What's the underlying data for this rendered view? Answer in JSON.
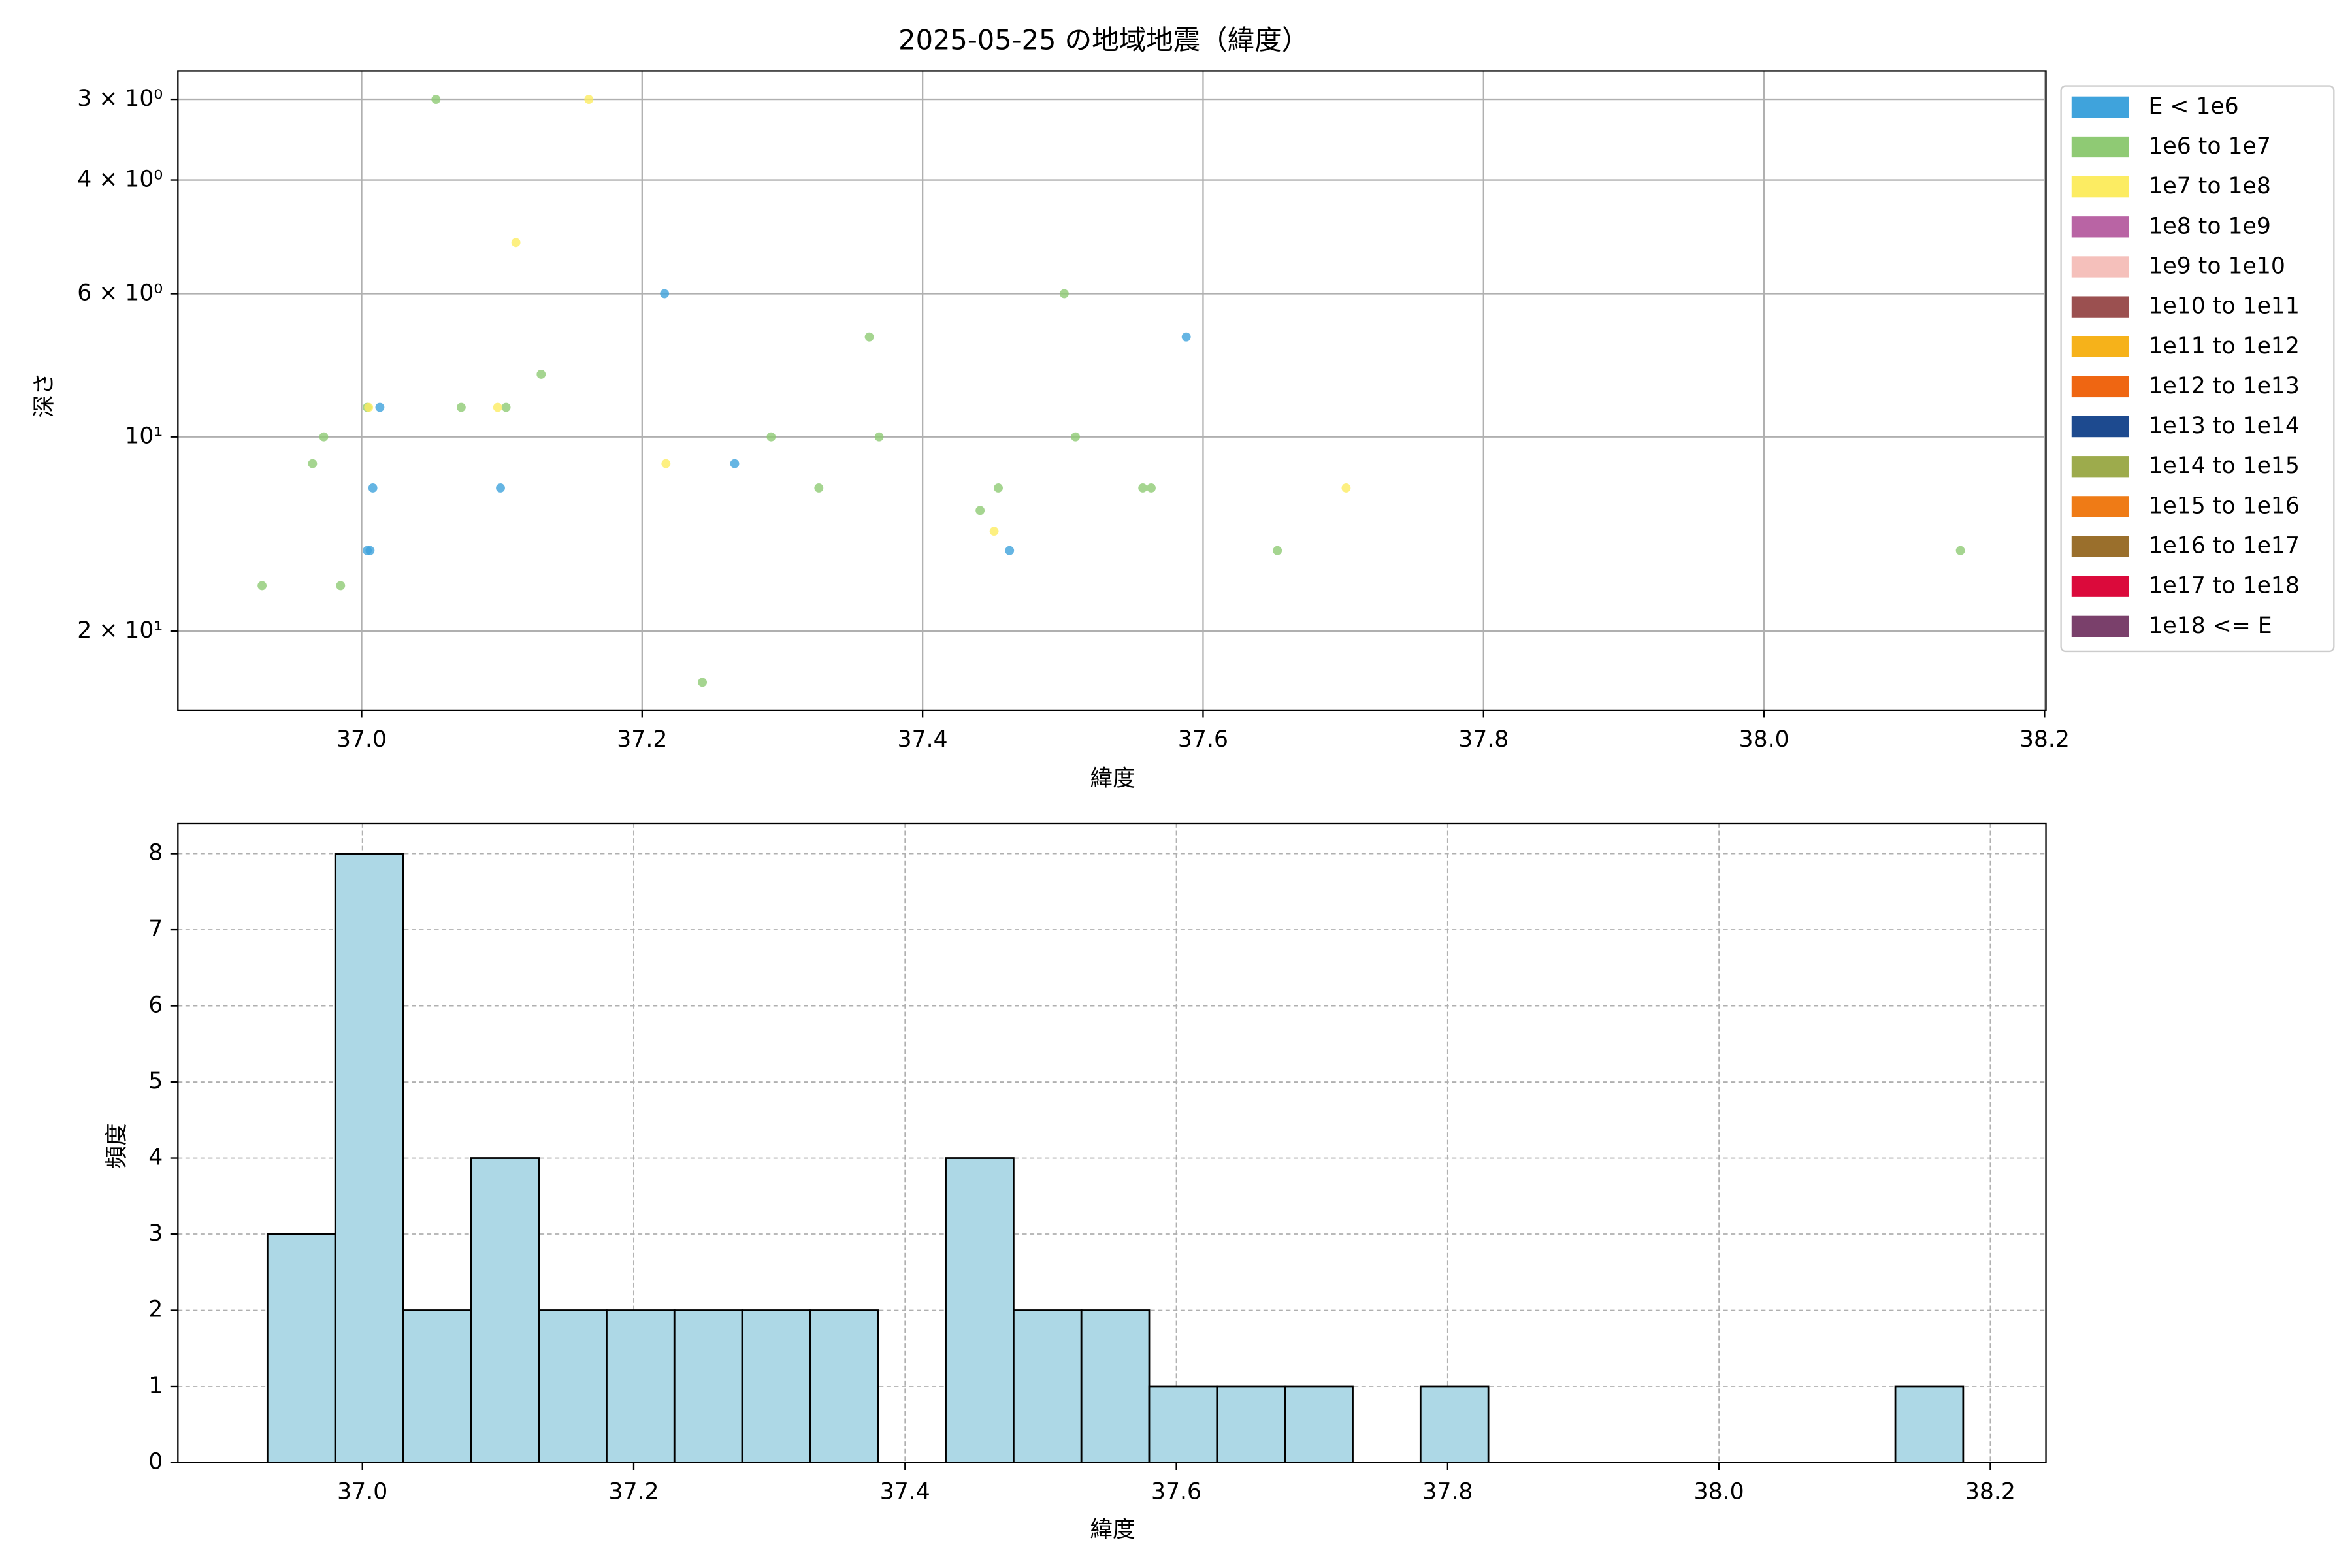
{
  "chart_data": [
    {
      "type": "scatter",
      "title": "2025-05-25 の地域地震（緯度）",
      "xlabel": "緯度",
      "ylabel": "深さ",
      "xlim": [
        36.869,
        38.201
      ],
      "ylim": [
        26.5,
        2.71
      ],
      "yscale": "log",
      "grid": true,
      "legend": "outside right",
      "xticks": [
        {
          "value": 37.0,
          "label": "37.0"
        },
        {
          "value": 37.2,
          "label": "37.2"
        },
        {
          "value": 37.4,
          "label": "37.4"
        },
        {
          "value": 37.6,
          "label": "37.6"
        },
        {
          "value": 37.8,
          "label": "37.8"
        },
        {
          "value": 38.0,
          "label": "38.0"
        },
        {
          "value": 38.2,
          "label": "38.2"
        }
      ],
      "yticks": [
        {
          "value": 3,
          "label": "3 × 10⁰"
        },
        {
          "value": 4,
          "label": "4 × 10⁰"
        },
        {
          "value": 6,
          "label": "6 × 10⁰"
        },
        {
          "value": 10,
          "label": "10¹"
        },
        {
          "value": 20,
          "label": "2 × 10¹"
        }
      ],
      "series": [
        {
          "name": "E < 1e6",
          "color": "#3fa3dc",
          "x": [
            37.013,
            37.008,
            37.004,
            37.006,
            37.099,
            37.216,
            37.266,
            37.462,
            37.588
          ],
          "values": [
            9,
            12,
            15,
            15,
            12,
            6,
            11,
            15,
            7
          ]
        },
        {
          "name": "1e6 to 1e7",
          "color": "#8fca74",
          "x": [
            37.053,
            36.929,
            36.985,
            36.965,
            36.973,
            37.004,
            37.071,
            37.103,
            37.128,
            37.243,
            37.292,
            37.326,
            37.362,
            37.369,
            37.441,
            37.454,
            37.501,
            37.509,
            37.557,
            37.563,
            37.653,
            38.14
          ],
          "values": [
            3,
            17,
            17,
            11,
            10,
            9,
            9,
            9,
            8,
            24,
            10,
            12,
            7,
            10,
            13,
            12,
            6,
            10,
            12,
            12,
            15,
            15
          ]
        },
        {
          "name": "1e7 to 1e8",
          "color": "#fcec62",
          "x": [
            37.162,
            37.11,
            37.005,
            37.097,
            37.217,
            37.451,
            37.702
          ],
          "values": [
            3,
            5,
            9,
            9,
            11,
            14,
            12
          ]
        },
        {
          "name": "1e8 to 1e9",
          "color": "#b964a4",
          "x": [],
          "values": []
        },
        {
          "name": "1e9 to 1e10",
          "color": "#f5c0bb",
          "x": [],
          "values": []
        },
        {
          "name": "1e10 to 1e11",
          "color": "#9b5050",
          "x": [],
          "values": []
        },
        {
          "name": "1e11 to 1e12",
          "color": "#f6b21a",
          "x": [],
          "values": []
        },
        {
          "name": "1e12 to 1e13",
          "color": "#ef6612",
          "x": [],
          "values": []
        },
        {
          "name": "1e13 to 1e14",
          "color": "#1d4a8f",
          "x": [],
          "values": []
        },
        {
          "name": "1e14 to 1e15",
          "color": "#9dab4c",
          "x": [],
          "values": []
        },
        {
          "name": "1e15 to 1e16",
          "color": "#ef7b16",
          "x": [],
          "values": []
        },
        {
          "name": "1e16 to 1e17",
          "color": "#9a6f2c",
          "x": [],
          "values": []
        },
        {
          "name": "1e17 to 1e18",
          "color": "#db0a3b",
          "x": [],
          "values": []
        },
        {
          "name": "1e18 <= E",
          "color": "#7a406b",
          "x": [],
          "values": []
        }
      ]
    },
    {
      "type": "histogram",
      "xlabel": "緯度",
      "ylabel": "頻度",
      "color": "#add8e6",
      "edgecolor": "#000000",
      "xlim": [
        36.864,
        38.241
      ],
      "ylim": [
        0,
        8.4
      ],
      "grid": true,
      "xticks": [
        {
          "value": 37.0,
          "label": "37.0"
        },
        {
          "value": 37.2,
          "label": "37.2"
        },
        {
          "value": 37.4,
          "label": "37.4"
        },
        {
          "value": 37.6,
          "label": "37.6"
        },
        {
          "value": 37.8,
          "label": "37.8"
        },
        {
          "value": 38.0,
          "label": "38.0"
        },
        {
          "value": 38.2,
          "label": "38.2"
        }
      ],
      "yticks": [
        0,
        1,
        2,
        3,
        4,
        5,
        6,
        7,
        8
      ],
      "bins": [
        36.93,
        36.98,
        37.03,
        37.08,
        37.13,
        37.18,
        37.23,
        37.28,
        37.33,
        37.38,
        37.43,
        37.48,
        37.53,
        37.58,
        37.63,
        37.68,
        37.73,
        37.78,
        37.83,
        37.88,
        37.93,
        37.98,
        38.03,
        38.08,
        38.13,
        38.18
      ],
      "counts": [
        3,
        8,
        2,
        4,
        2,
        2,
        2,
        2,
        2,
        0,
        4,
        2,
        2,
        1,
        1,
        1,
        0,
        1,
        0,
        0,
        0,
        0,
        0,
        0,
        1
      ]
    }
  ]
}
